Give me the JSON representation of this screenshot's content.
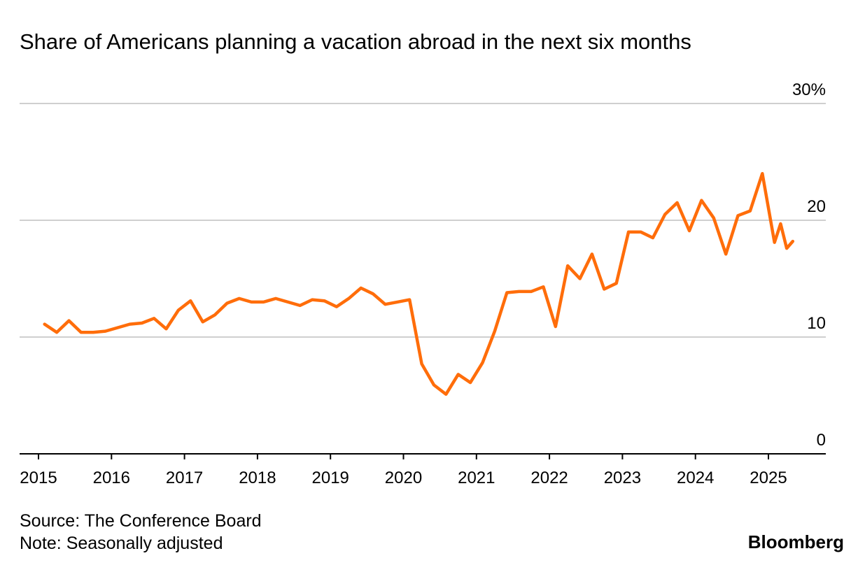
{
  "chart_data": {
    "type": "line",
    "title": "Share of Americans planning a vacation abroad in the next six months",
    "xlabel": "",
    "ylabel": "",
    "x_tick_labels": [
      "2015",
      "2016",
      "2017",
      "2018",
      "2019",
      "2020",
      "2021",
      "2022",
      "2023",
      "2024",
      "2025"
    ],
    "y_tick_labels": [
      {
        "value": 30,
        "label": "30%"
      },
      {
        "value": 20,
        "label": "20"
      },
      {
        "value": 10,
        "label": "10"
      },
      {
        "value": 0,
        "label": "0"
      }
    ],
    "ylim": [
      0,
      30
    ],
    "xlim": [
      "2015-01",
      "2025-12"
    ],
    "grid": true,
    "line_color": "#ff6d0a",
    "series": [
      {
        "x": [
          "2015-02",
          "2015-04",
          "2015-06",
          "2015-08",
          "2015-10",
          "2015-12",
          "2016-02",
          "2016-04",
          "2016-06",
          "2016-08",
          "2016-10",
          "2016-12",
          "2017-02",
          "2017-04",
          "2017-06",
          "2017-08",
          "2017-10",
          "2017-12",
          "2018-02",
          "2018-04",
          "2018-06",
          "2018-08",
          "2018-10",
          "2018-12",
          "2019-02",
          "2019-04",
          "2019-06",
          "2019-08",
          "2019-10",
          "2019-12",
          "2020-02",
          "2020-04",
          "2020-06",
          "2020-08",
          "2020-10",
          "2020-12",
          "2021-02",
          "2021-04",
          "2021-06",
          "2021-08",
          "2021-10",
          "2021-12",
          "2022-02",
          "2022-04",
          "2022-06",
          "2022-08",
          "2022-10",
          "2022-12",
          "2023-02",
          "2023-04",
          "2023-06",
          "2023-08",
          "2023-10",
          "2023-12",
          "2024-02",
          "2024-04",
          "2024-06",
          "2024-08",
          "2024-10",
          "2024-12",
          "2025-02",
          "2025-03",
          "2025-04",
          "2025-05"
        ],
        "y": [
          11.1,
          10.4,
          11.4,
          10.4,
          10.4,
          10.5,
          10.8,
          11.1,
          11.2,
          11.6,
          10.7,
          12.3,
          13.1,
          11.3,
          11.9,
          12.9,
          13.3,
          13.0,
          13.0,
          13.3,
          13.0,
          12.7,
          13.2,
          13.1,
          12.6,
          13.3,
          14.2,
          13.7,
          12.8,
          13.0,
          13.2,
          7.7,
          5.9,
          5.1,
          6.8,
          6.1,
          7.8,
          10.5,
          13.8,
          13.9,
          13.9,
          14.3,
          10.9,
          16.1,
          15.0,
          17.1,
          14.1,
          14.6,
          19.0,
          19.0,
          18.5,
          20.5,
          21.5,
          19.1,
          21.7,
          20.2,
          17.1,
          20.4,
          20.8,
          24.0,
          18.1,
          19.7,
          17.6,
          18.2
        ]
      }
    ]
  },
  "footer": {
    "source": "Source: The Conference Board",
    "note": "Note: Seasonally adjusted",
    "brand": "Bloomberg"
  }
}
